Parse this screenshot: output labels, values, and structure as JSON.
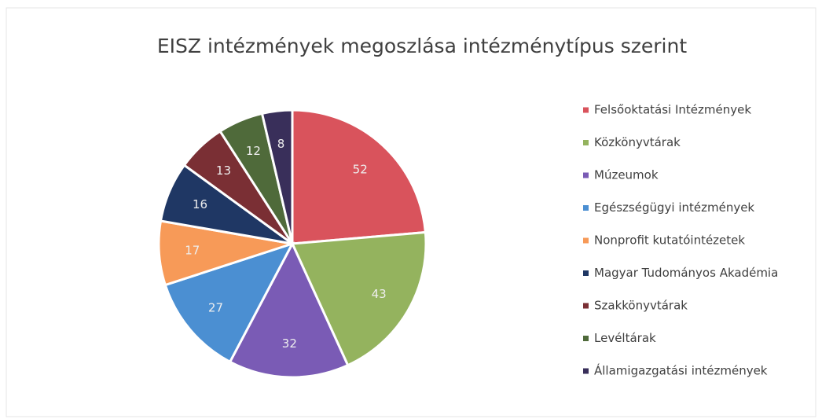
{
  "chart_data": {
    "type": "pie",
    "title": "EISZ intézmények megoszlása intézménytípus szerint",
    "categories": [
      "Felsőoktatási Intézmények",
      "Közkönyvtárak",
      "Múzeumok",
      "Egészségügyi intézmények",
      "Nonprofit kutatóintézetek",
      "Magyar Tudományos Akadémia",
      "Szakkönyvtárak",
      "Levéltárak",
      "Államigazgatási intézmények"
    ],
    "values": [
      52,
      43,
      32,
      27,
      17,
      16,
      13,
      12,
      8
    ],
    "colors": [
      "#d9535c",
      "#94b35e",
      "#7a5bb5",
      "#4b8fd2",
      "#f79a58",
      "#1f3764",
      "#7a2f34",
      "#4f6a3a",
      "#392f5a"
    ],
    "legend": "right"
  }
}
